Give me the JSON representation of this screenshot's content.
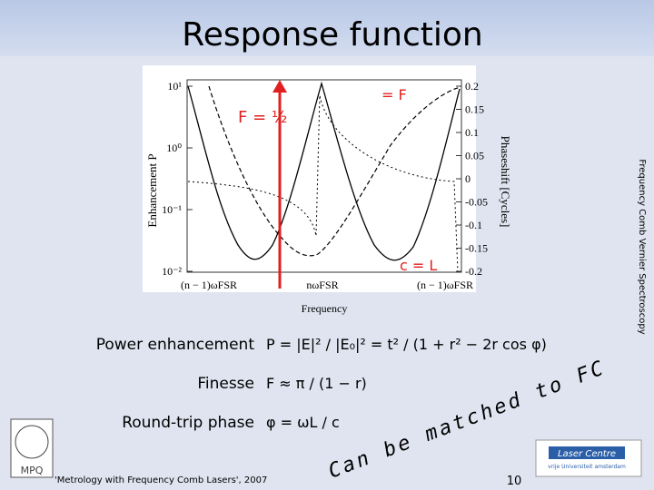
{
  "title": "Response function",
  "side_text": "Frequency Comb Vernier Spectroscopy",
  "figure": {
    "y_label": "Enhancement P",
    "y2_label": "Phaseshift [Cycles]",
    "x_label": "Frequency",
    "y_ticks": [
      "10¹",
      "10⁰",
      "10⁻¹",
      "10⁻²"
    ],
    "y2_ticks": [
      "0.2",
      "0.15",
      "0.1",
      "0.05",
      "0",
      "-0.05",
      "-0.1",
      "-0.15",
      "-0.2"
    ],
    "x_ticks": [
      "(n − 1)ωFSR",
      "nωFSR",
      "(n − 1)ωFSR"
    ],
    "annotations": [
      "F = ½",
      "= F",
      "c = L"
    ]
  },
  "formulas": [
    {
      "label": "Power enhancement",
      "expression": "P = |E|² / |E₀|² = t² / (1 + r² − 2r cos φ)"
    },
    {
      "label": "Finesse",
      "expression": "F ≈ π / (1 − r)"
    },
    {
      "label": "Round-trip phase",
      "expression": "φ = ωL / c"
    }
  ],
  "handwritten": "Can be matched to FC",
  "footer": "'Metrology with Frequency Comb Lasers', 2007",
  "page_number": "10",
  "logos": {
    "left": "MPQ",
    "right": "Laser Centre",
    "right_sub": "vrije Universiteit amsterdam"
  }
}
